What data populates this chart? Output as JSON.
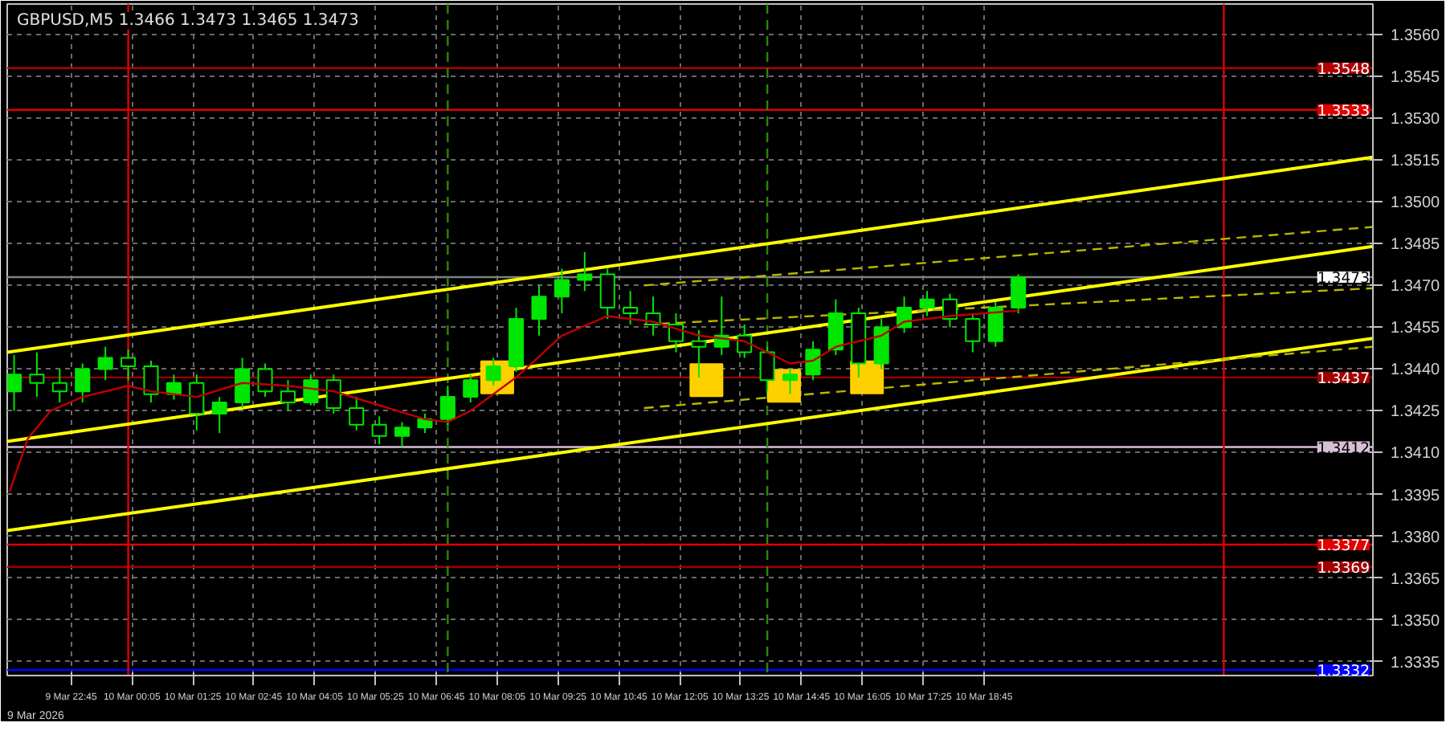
{
  "chart_data": {
    "type": "candlestick",
    "title": "GBPUSD,M5  1.3466 1.3473 1.3465 1.3473",
    "x": [
      "2026-03-09T21:30",
      "2026-03-09T22:00",
      "2026-03-09T22:30",
      "2026-03-09T23:00",
      "2026-03-09T23:30",
      "2026-03-10T00:00",
      "2026-03-10T00:30",
      "2026-03-10T01:00",
      "2026-03-10T01:30",
      "2026-03-10T02:00",
      "2026-03-10T02:30",
      "2026-03-10T03:00",
      "2026-03-10T03:30",
      "2026-03-10T04:00",
      "2026-03-10T04:30",
      "2026-03-10T05:00",
      "2026-03-10T05:30",
      "2026-03-10T06:00",
      "2026-03-10T06:30",
      "2026-03-10T07:00",
      "2026-03-10T07:30",
      "2026-03-10T08:00",
      "2026-03-10T08:30",
      "2026-03-10T09:00",
      "2026-03-10T09:30",
      "2026-03-10T10:00",
      "2026-03-10T10:30",
      "2026-03-10T11:00",
      "2026-03-10T11:30",
      "2026-03-10T12:00",
      "2026-03-10T12:30",
      "2026-03-10T13:00",
      "2026-03-10T13:30",
      "2026-03-10T14:00",
      "2026-03-10T14:30",
      "2026-03-10T15:00",
      "2026-03-10T15:30",
      "2026-03-10T16:00",
      "2026-03-10T16:30",
      "2026-03-10T17:00",
      "2026-03-10T17:30",
      "2026-03-10T18:00",
      "2026-03-10T18:30",
      "2026-03-10T19:00",
      "2026-03-10T19:30"
    ],
    "ohlc": [
      [
        1.3432,
        1.3445,
        1.3425,
        1.3438
      ],
      [
        1.3438,
        1.3446,
        1.343,
        1.3435
      ],
      [
        1.3435,
        1.344,
        1.3428,
        1.3432
      ],
      [
        1.3432,
        1.3442,
        1.3428,
        1.344
      ],
      [
        1.344,
        1.3448,
        1.3436,
        1.3444
      ],
      [
        1.3444,
        1.3447,
        1.3436,
        1.3441
      ],
      [
        1.3441,
        1.3443,
        1.3428,
        1.3431
      ],
      [
        1.3431,
        1.3438,
        1.3429,
        1.3435
      ],
      [
        1.3435,
        1.3438,
        1.3418,
        1.3424
      ],
      [
        1.3424,
        1.343,
        1.3417,
        1.3428
      ],
      [
        1.3428,
        1.3444,
        1.3426,
        1.344
      ],
      [
        1.344,
        1.3442,
        1.343,
        1.3432
      ],
      [
        1.3432,
        1.3436,
        1.3425,
        1.3428
      ],
      [
        1.3428,
        1.3438,
        1.3427,
        1.3436
      ],
      [
        1.3436,
        1.3438,
        1.3424,
        1.3426
      ],
      [
        1.3426,
        1.343,
        1.3418,
        1.342
      ],
      [
        1.342,
        1.3423,
        1.3413,
        1.3416
      ],
      [
        1.3416,
        1.3421,
        1.3412,
        1.3419
      ],
      [
        1.3419,
        1.3424,
        1.3417,
        1.3422
      ],
      [
        1.3422,
        1.3434,
        1.342,
        1.343
      ],
      [
        1.343,
        1.3438,
        1.3428,
        1.3436
      ],
      [
        1.3436,
        1.3444,
        1.3434,
        1.3441
      ],
      [
        1.3441,
        1.3462,
        1.3439,
        1.3458
      ],
      [
        1.3458,
        1.347,
        1.3452,
        1.3466
      ],
      [
        1.3466,
        1.3476,
        1.346,
        1.3472
      ],
      [
        1.3472,
        1.3482,
        1.3468,
        1.3474
      ],
      [
        1.3474,
        1.3476,
        1.3458,
        1.3462
      ],
      [
        1.3462,
        1.3468,
        1.3456,
        1.346
      ],
      [
        1.346,
        1.3466,
        1.3452,
        1.3456
      ],
      [
        1.3456,
        1.346,
        1.3446,
        1.345
      ],
      [
        1.345,
        1.3454,
        1.3437,
        1.3448
      ],
      [
        1.3448,
        1.3466,
        1.3445,
        1.3452
      ],
      [
        1.3452,
        1.3456,
        1.3444,
        1.3446
      ],
      [
        1.3446,
        1.3448,
        1.3432,
        1.3436
      ],
      [
        1.3436,
        1.344,
        1.3431,
        1.3438
      ],
      [
        1.3438,
        1.345,
        1.3436,
        1.3447
      ],
      [
        1.3447,
        1.3465,
        1.3445,
        1.346
      ],
      [
        1.346,
        1.3462,
        1.3437,
        1.3442
      ],
      [
        1.3442,
        1.3458,
        1.344,
        1.3455
      ],
      [
        1.3455,
        1.3466,
        1.3453,
        1.3462
      ],
      [
        1.3462,
        1.3468,
        1.3459,
        1.3465
      ],
      [
        1.3465,
        1.3467,
        1.3455,
        1.3458
      ],
      [
        1.3458,
        1.346,
        1.3446,
        1.345
      ],
      [
        1.345,
        1.3464,
        1.3448,
        1.3462
      ],
      [
        1.3462,
        1.3474,
        1.346,
        1.3473
      ]
    ],
    "color": "#00e600",
    "series": [
      {
        "type": "line",
        "color": "#c00000",
        "x": [
          "2026-03-09T21:24",
          "2026-03-09T21:48",
          "2026-03-09T22:18",
          "2026-03-09T23:00",
          "2026-03-10T00:00",
          "2026-03-10T00:30",
          "2026-03-10T01:30",
          "2026-03-10T02:30",
          "2026-03-10T03:30",
          "2026-03-10T04:30",
          "2026-03-10T05:30",
          "2026-03-10T06:30",
          "2026-03-10T07:00",
          "2026-03-10T07:30",
          "2026-03-10T08:30",
          "2026-03-10T09:30",
          "2026-03-10T10:30",
          "2026-03-10T11:30",
          "2026-03-10T12:30",
          "2026-03-10T13:30",
          "2026-03-10T14:00",
          "2026-03-10T14:30",
          "2026-03-10T15:00",
          "2026-03-10T15:30",
          "2026-03-10T16:00",
          "2026-03-10T16:30",
          "2026-03-10T17:00",
          "2026-03-10T18:00",
          "2026-03-10T19:30"
        ],
        "values": [
          1.3396,
          1.3415,
          1.3425,
          1.343,
          1.3434,
          1.3432,
          1.343,
          1.3435,
          1.3434,
          1.3432,
          1.3427,
          1.3422,
          1.3421,
          1.3425,
          1.3437,
          1.3452,
          1.3459,
          1.3457,
          1.3452,
          1.345,
          1.3446,
          1.3442,
          1.3443,
          1.3448,
          1.345,
          1.3452,
          1.3457,
          1.3459,
          1.3461
        ]
      },
      {
        "type": "line",
        "color": "#ffff00",
        "x": [
          "2026-03-09T21:21",
          "2026-03-11T03:16"
        ],
        "values": [
          1.3446,
          1.3516
        ]
      },
      {
        "type": "line",
        "color": "#ffff00",
        "x": [
          "2026-03-09T21:21",
          "2026-03-11T03:16"
        ],
        "values": [
          1.3414,
          1.3484
        ]
      },
      {
        "type": "line",
        "color": "#ffff00",
        "x": [
          "2026-03-09T21:21",
          "2026-03-11T03:16"
        ],
        "values": [
          1.3382,
          1.3451
        ]
      },
      {
        "type": "line",
        "color": "#b8b800",
        "line_style": "dashed",
        "x": [
          "2026-03-10T11:18",
          "2026-03-11T03:16"
        ],
        "values": [
          1.347,
          1.3491
        ]
      },
      {
        "type": "line",
        "color": "#b8b800",
        "line_style": "dashed",
        "x": [
          "2026-03-10T11:18",
          "2026-03-11T03:16"
        ],
        "values": [
          1.3456,
          1.3469
        ]
      },
      {
        "type": "line",
        "color": "#b8b800",
        "line_style": "dashed",
        "x": [
          "2026-03-10T11:18",
          "2026-03-11T03:16"
        ],
        "values": [
          1.3426,
          1.3448
        ]
      },
      {
        "type": "scatter",
        "marker": "square",
        "color": "#ffd000",
        "x": [
          "2026-03-10T08:05",
          "2026-03-10T12:40",
          "2026-03-10T14:22",
          "2026-03-10T16:11"
        ],
        "values": [
          1.3437,
          1.3436,
          1.3434,
          1.3437
        ]
      }
    ],
    "xlim": [
      "2026-03-09T21:21",
      "2026-03-11T03:16"
    ],
    "ylim": [
      1.333,
      1.3571
    ],
    "annotations": [
      "9 Mar 2026"
    ],
    "xticks": [
      {
        "value": "2026-03-09T22:45",
        "label": "9 Mar 22:45"
      },
      {
        "value": "2026-03-10T00:05",
        "label": "10 Mar 00:05"
      },
      {
        "value": "2026-03-10T01:25",
        "label": "10 Mar 01:25"
      },
      {
        "value": "2026-03-10T02:45",
        "label": "10 Mar 02:45"
      },
      {
        "value": "2026-03-10T04:05",
        "label": "10 Mar 04:05"
      },
      {
        "value": "2026-03-10T05:25",
        "label": "10 Mar 05:25"
      },
      {
        "value": "2026-03-10T06:45",
        "label": "10 Mar 06:45"
      },
      {
        "value": "2026-03-10T08:05",
        "label": "10 Mar 08:05"
      },
      {
        "value": "2026-03-10T09:25",
        "label": "10 Mar 09:25"
      },
      {
        "value": "2026-03-10T10:45",
        "label": "10 Mar 10:45"
      },
      {
        "value": "2026-03-10T12:05",
        "label": "10 Mar 12:05"
      },
      {
        "value": "2026-03-10T13:25",
        "label": "10 Mar 13:25"
      },
      {
        "value": "2026-03-10T14:45",
        "label": "10 Mar 14:45"
      },
      {
        "value": "2026-03-10T16:05",
        "label": "10 Mar 16:05"
      },
      {
        "value": "2026-03-10T17:25",
        "label": "10 Mar 17:25"
      },
      {
        "value": "2026-03-10T18:45",
        "label": "10 Mar 18:45"
      }
    ],
    "yticks": [
      {
        "value": 1.3335,
        "label": "1.3335"
      },
      {
        "value": 1.335,
        "label": "1.3350"
      },
      {
        "value": 1.3365,
        "label": "1.3365"
      },
      {
        "value": 1.338,
        "label": "1.3380"
      },
      {
        "value": 1.3395,
        "label": "1.3395"
      },
      {
        "value": 1.341,
        "label": "1.3410"
      },
      {
        "value": 1.3425,
        "label": "1.3425"
      },
      {
        "value": 1.344,
        "label": "1.3440"
      },
      {
        "value": 1.3455,
        "label": "1.3455"
      },
      {
        "value": 1.347,
        "label": "1.3470"
      },
      {
        "value": 1.3485,
        "label": "1.3485"
      },
      {
        "value": 1.35,
        "label": "1.3500"
      },
      {
        "value": 1.3515,
        "label": "1.3515"
      },
      {
        "value": 1.353,
        "label": "1.3530"
      },
      {
        "value": 1.3545,
        "label": "1.3545"
      },
      {
        "value": 1.356,
        "label": "1.3560"
      }
    ],
    "ref_lines": [
      {
        "axis": "y",
        "value": 1.3548,
        "label": "1.3548",
        "color": "#b00000"
      },
      {
        "axis": "y",
        "value": 1.3533,
        "label": "1.3533",
        "color": "#e00000"
      },
      {
        "axis": "y",
        "value": 1.3473,
        "label": "1.3473",
        "color": "#808080"
      },
      {
        "axis": "y",
        "value": 1.3437,
        "label": "1.3437",
        "color": "#a00000"
      },
      {
        "axis": "y",
        "value": 1.3412,
        "label": "1.3412",
        "color": "#d8bfd8"
      },
      {
        "axis": "y",
        "value": 1.3377,
        "label": "1.3377",
        "color": "#e00000"
      },
      {
        "axis": "y",
        "value": 1.3369,
        "label": "1.3369",
        "color": "#a00000"
      },
      {
        "axis": "y",
        "value": 1.3332,
        "label": "1.3332",
        "color": "#0000ff"
      },
      {
        "axis": "x",
        "value": "2026-03-10T00:00",
        "color": "#e00000"
      },
      {
        "axis": "x",
        "value": "2026-03-10T07:00",
        "color": "#2a8a00",
        "line_style": "dashed"
      },
      {
        "axis": "x",
        "value": "2026-03-10T14:00",
        "color": "#2a8a00",
        "line_style": "dashed"
      },
      {
        "axis": "x",
        "value": "2026-03-11T00:00",
        "color": "#e00000"
      }
    ],
    "grid": true
  }
}
